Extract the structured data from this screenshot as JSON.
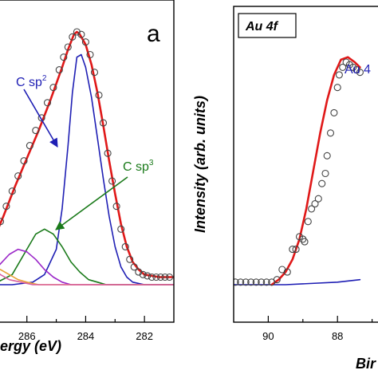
{
  "chart_data": [
    {
      "type": "line",
      "panel_label": "a",
      "xlabel": "ergy (eV)",
      "xlim": [
        288,
        281
      ],
      "ylim": [
        0,
        1.0
      ],
      "x_ticks": [
        286,
        284,
        282
      ],
      "x_minor_ticks": [
        287,
        285,
        283
      ],
      "grid": false,
      "annotations": [
        {
          "text": "C sp",
          "sup": "2",
          "color": "#1f1fb4",
          "target": [
            284.6,
            0.62
          ]
        },
        {
          "text": "C sp",
          "sup": "3",
          "color": "#1a7a1a",
          "target": [
            285.4,
            0.22
          ]
        }
      ],
      "series": [
        {
          "role": "data-points",
          "color": "#444444",
          "x": [
            287.9,
            287.7,
            287.5,
            287.3,
            287.1,
            286.9,
            286.7,
            286.5,
            286.3,
            286.1,
            285.9,
            285.7,
            285.5,
            285.3,
            285.1,
            284.9,
            284.75,
            284.6,
            284.45,
            284.3,
            284.15,
            284.0,
            283.85,
            283.7,
            283.55,
            283.4,
            283.25,
            283.1,
            282.95,
            282.8,
            282.65,
            282.5,
            282.35,
            282.2,
            282.05,
            281.9,
            281.75,
            281.6,
            281.45,
            281.3,
            281.15
          ],
          "y": [
            0.03,
            0.06,
            0.1,
            0.14,
            0.19,
            0.25,
            0.31,
            0.37,
            0.43,
            0.49,
            0.55,
            0.61,
            0.66,
            0.72,
            0.78,
            0.85,
            0.9,
            0.94,
            0.98,
            1.0,
            0.99,
            0.96,
            0.91,
            0.84,
            0.75,
            0.64,
            0.52,
            0.41,
            0.31,
            0.22,
            0.15,
            0.1,
            0.07,
            0.05,
            0.04,
            0.035,
            0.03,
            0.03,
            0.03,
            0.03,
            0.03
          ]
        },
        {
          "role": "fit",
          "color": "#e01818",
          "x": [
            288.0,
            287.6,
            287.2,
            286.8,
            286.4,
            286.0,
            285.6,
            285.2,
            284.8,
            284.6,
            284.4,
            284.3,
            284.2,
            284.0,
            283.8,
            283.6,
            283.4,
            283.2,
            283.0,
            282.8,
            282.6,
            282.4,
            282.2,
            282.0,
            281.5,
            281.0
          ],
          "y": [
            0.03,
            0.08,
            0.16,
            0.27,
            0.39,
            0.5,
            0.61,
            0.73,
            0.86,
            0.93,
            0.99,
            1.0,
            0.99,
            0.95,
            0.87,
            0.76,
            0.63,
            0.49,
            0.36,
            0.24,
            0.15,
            0.09,
            0.06,
            0.04,
            0.03,
            0.03
          ]
        },
        {
          "role": "component",
          "name": "C sp2",
          "color": "#1f1fb4",
          "x": [
            288.0,
            286.5,
            285.8,
            285.4,
            285.0,
            284.8,
            284.6,
            284.45,
            284.3,
            284.15,
            284.0,
            283.8,
            283.6,
            283.4,
            283.2,
            283.0,
            282.8,
            282.6,
            282.4,
            282.0,
            281.0
          ],
          "y": [
            0.0,
            0.0,
            0.01,
            0.04,
            0.14,
            0.3,
            0.55,
            0.76,
            0.9,
            0.91,
            0.86,
            0.74,
            0.58,
            0.42,
            0.27,
            0.15,
            0.07,
            0.03,
            0.01,
            0.0,
            0.0
          ]
        },
        {
          "role": "component",
          "name": "C sp3",
          "color": "#1a7a1a",
          "x": [
            288.0,
            287.0,
            286.5,
            286.0,
            285.7,
            285.4,
            285.1,
            284.8,
            284.5,
            284.2,
            283.9,
            283.6,
            283.3,
            283.0,
            282.5,
            281.0
          ],
          "y": [
            0.0,
            0.01,
            0.04,
            0.14,
            0.2,
            0.22,
            0.2,
            0.15,
            0.09,
            0.05,
            0.02,
            0.01,
            0.0,
            0.0,
            0.0,
            0.0
          ]
        },
        {
          "role": "component",
          "color": "#9b27c8",
          "x": [
            288.0,
            287.5,
            287.0,
            286.6,
            286.3,
            286.0,
            285.7,
            285.4,
            285.1,
            284.8,
            284.5,
            284.0,
            281.0
          ],
          "y": [
            0.0,
            0.02,
            0.07,
            0.12,
            0.14,
            0.13,
            0.1,
            0.06,
            0.03,
            0.01,
            0.0,
            0.0,
            0.0
          ]
        },
        {
          "role": "component",
          "color": "#e8a23a",
          "x": [
            288.0,
            287.6,
            287.2,
            286.9,
            286.6,
            286.3,
            286.0,
            285.6,
            285.2,
            281.0
          ],
          "y": [
            0.0,
            0.04,
            0.07,
            0.06,
            0.04,
            0.02,
            0.01,
            0.0,
            0.0,
            0.0
          ]
        },
        {
          "role": "component",
          "color": "#d95fa0",
          "x": [
            288.0,
            287.8,
            287.5,
            287.2,
            286.9,
            286.6,
            286.2,
            285.8,
            281.0
          ],
          "y": [
            0.0,
            0.05,
            0.09,
            0.07,
            0.04,
            0.02,
            0.01,
            0.0,
            0.0
          ]
        }
      ]
    },
    {
      "type": "line",
      "tag": "Au 4f",
      "ylabel": "Intensity (arb. units)",
      "xlabel": "Bir",
      "xlim": [
        91,
        86
      ],
      "ylim": [
        0,
        1.0
      ],
      "x_ticks": [
        90,
        88
      ],
      "x_minor_ticks": [
        89,
        87
      ],
      "grid": false,
      "annotations": [
        {
          "text": "Au 4",
          "color": "#1f1fb4"
        }
      ],
      "series": [
        {
          "role": "data-points",
          "color": "#444444",
          "x": [
            90.95,
            90.8,
            90.65,
            90.5,
            90.35,
            90.2,
            90.05,
            89.9,
            89.75,
            89.6,
            89.45,
            89.3,
            89.2,
            89.1,
            89.0,
            88.95,
            88.85,
            88.75,
            88.65,
            88.55,
            88.45,
            88.35,
            88.3,
            88.2,
            88.1,
            88.0,
            87.95,
            87.85,
            87.75,
            87.65,
            87.55,
            87.45,
            87.35
          ],
          "y": [
            0.01,
            0.01,
            0.01,
            0.01,
            0.01,
            0.01,
            0.01,
            0.01,
            0.02,
            0.06,
            0.05,
            0.14,
            0.14,
            0.19,
            0.18,
            0.17,
            0.25,
            0.3,
            0.32,
            0.34,
            0.4,
            0.44,
            0.51,
            0.6,
            0.68,
            0.78,
            0.83,
            0.86,
            0.88,
            0.87,
            0.86,
            0.85,
            0.84
          ]
        },
        {
          "role": "fit",
          "color": "#e01818",
          "x": [
            89.9,
            89.7,
            89.5,
            89.3,
            89.1,
            88.9,
            88.7,
            88.5,
            88.3,
            88.1,
            87.9,
            87.7,
            87.5,
            87.35
          ],
          "y": [
            0.0,
            0.02,
            0.05,
            0.1,
            0.18,
            0.3,
            0.45,
            0.6,
            0.73,
            0.83,
            0.89,
            0.9,
            0.88,
            0.86
          ]
        },
        {
          "role": "baseline",
          "color": "#1f1fb4",
          "x": [
            91.0,
            89.5,
            88.0,
            87.35
          ],
          "y": [
            0.0,
            0.0,
            0.01,
            0.02
          ]
        }
      ]
    }
  ]
}
